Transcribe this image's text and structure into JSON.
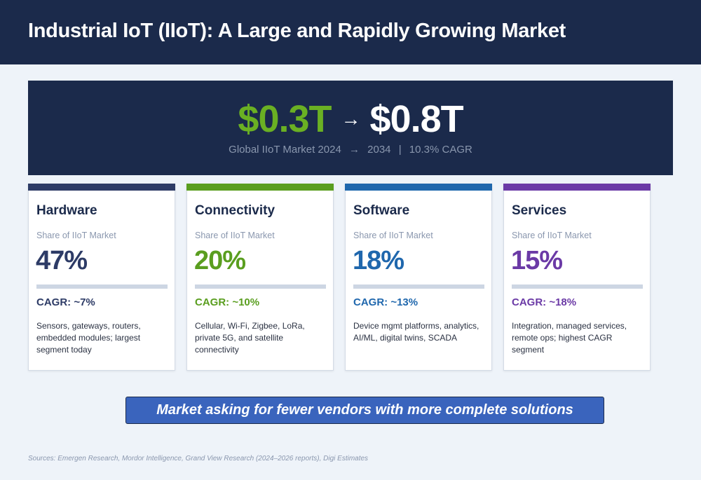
{
  "header": {
    "title": "Industrial IoT (IIoT): A Large and Rapidly Growing Market"
  },
  "hero": {
    "from_value": "$0.3T",
    "arrow": "→",
    "to_value": "$0.8T",
    "subtitle_market": "Global IIoT Market 2024",
    "subtitle_arrow": "→",
    "subtitle_end_year": "2034",
    "subtitle_separator": "|",
    "subtitle_cagr": "10.3% CAGR"
  },
  "segments": [
    {
      "title": "Hardware",
      "label": "Share of IIoT Market",
      "share": "47%",
      "cagr": "CAGR: ~7%",
      "description": "Sensors, gateways, routers, embedded modules; largest segment today",
      "color": "#2d3b66"
    },
    {
      "title": "Connectivity",
      "label": "Share of IIoT Market",
      "share": "20%",
      "cagr": "CAGR: ~10%",
      "description": "Cellular, Wi-Fi, Zigbee, LoRa, private 5G, and satellite connectivity",
      "color": "#5a9e1f"
    },
    {
      "title": "Software",
      "label": "Share of IIoT Market",
      "share": "18%",
      "cagr": "CAGR: ~13%",
      "description": "Device mgmt platforms, analytics, AI/ML, digital twins, SCADA",
      "color": "#1f67ad"
    },
    {
      "title": "Services",
      "label": "Share of IIoT Market",
      "share": "15%",
      "cagr": "CAGR: ~18%",
      "description": "Integration, managed services, remote ops; highest CAGR segment",
      "color": "#6b3aa6"
    }
  ],
  "banner": {
    "text": "Market asking for fewer vendors with more complete solutions"
  },
  "footer": {
    "sources": "Sources: Emergen Research, Mordor Intelligence, Grand View Research (2024–2026 reports), Digi Estimates"
  },
  "colors": {
    "navy": "#1b2a4b",
    "green_accent": "#6ab023",
    "banner_blue": "#3a64bd",
    "muted_text": "#8a97ae"
  }
}
